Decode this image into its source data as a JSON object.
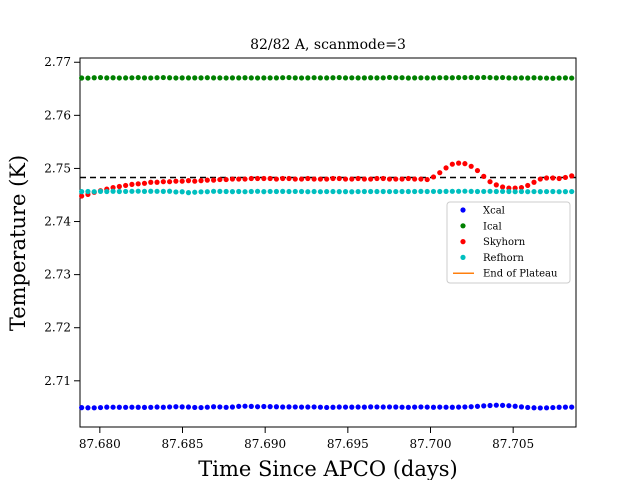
{
  "chart_data": {
    "type": "scatter",
    "title": "82/82 A, scanmode=3",
    "xlabel": "Time Since APCO (days)",
    "ylabel": "Temperature (K)",
    "xlim": [
      87.6788,
      87.7088
    ],
    "ylim": [
      2.7013,
      2.7708
    ],
    "xticks": [
      87.68,
      87.685,
      87.69,
      87.695,
      87.7,
      87.705
    ],
    "xtick_labels": [
      "87.680",
      "87.685",
      "87.690",
      "87.695",
      "87.700",
      "87.705"
    ],
    "yticks": [
      2.71,
      2.72,
      2.73,
      2.74,
      2.75,
      2.76,
      2.77
    ],
    "ytick_labels": [
      "2.71",
      "2.72",
      "2.73",
      "2.74",
      "2.75",
      "2.76",
      "2.77"
    ],
    "grid": false,
    "legend_position": "center-right",
    "hline": {
      "y": 2.7483,
      "style": "dashed",
      "color": "#000000"
    },
    "series": [
      {
        "name": "Xcal",
        "color": "#0000ff",
        "x_start": 87.6789,
        "x_step": 0.00038,
        "values": [
          2.70495,
          2.70492,
          2.70491,
          2.70496,
          2.70504,
          2.70503,
          2.70502,
          2.70501,
          2.70503,
          2.70502,
          2.70499,
          2.70501,
          2.70506,
          2.70502,
          2.70508,
          2.70512,
          2.70509,
          2.70506,
          2.70498,
          2.70496,
          2.70503,
          2.70511,
          2.70508,
          2.70501,
          2.70507,
          2.70519,
          2.70522,
          2.70518,
          2.70512,
          2.70516,
          2.70514,
          2.70511,
          2.70507,
          2.70509,
          2.70508,
          2.70505,
          2.70506,
          2.70508,
          2.70503,
          2.70498,
          2.70502,
          2.70506,
          2.70505,
          2.70504,
          2.70506,
          2.70504,
          2.70509,
          2.70508,
          2.70506,
          2.70508,
          2.70507,
          2.70503,
          2.70501,
          2.70505,
          2.70508,
          2.70505,
          2.70502,
          2.70505,
          2.70503,
          2.70502,
          2.70505,
          2.70508,
          2.70512,
          2.70519,
          2.70528,
          2.70535,
          2.70541,
          2.70538,
          2.70531,
          2.70521,
          2.70509,
          2.70498,
          2.70492,
          2.70489,
          2.70491,
          2.70496,
          2.70502,
          2.70504,
          2.70505,
          2.70509,
          2.70512
        ]
      },
      {
        "name": "Ical",
        "color": "#008000",
        "x_start": 87.6789,
        "x_step": 0.00038,
        "values": [
          2.76703,
          2.76702,
          2.76708,
          2.76712,
          2.76706,
          2.76708,
          2.76704,
          2.76705,
          2.76707,
          2.76711,
          2.76706,
          2.76704,
          2.76709,
          2.76712,
          2.76708,
          2.76704,
          2.76706,
          2.76705,
          2.76706,
          2.76706,
          2.76709,
          2.76706,
          2.76705,
          2.76704,
          2.76706,
          2.76705,
          2.76708,
          2.76705,
          2.76704,
          2.76706,
          2.76705,
          2.76705,
          2.76709,
          2.76712,
          2.76706,
          2.76704,
          2.76706,
          2.76709,
          2.76705,
          2.76705,
          2.76708,
          2.76712,
          2.76705,
          2.76707,
          2.76705,
          2.76706,
          2.76708,
          2.76706,
          2.76707,
          2.76714,
          2.76708,
          2.76709,
          2.76703,
          2.76705,
          2.76707,
          2.76705,
          2.76706,
          2.76709,
          2.76708,
          2.76708,
          2.76711,
          2.76712,
          2.76713,
          2.76709,
          2.76714,
          2.76711,
          2.76706,
          2.76712,
          2.76706,
          2.76704,
          2.76705,
          2.76703,
          2.76708,
          2.76704,
          2.76702,
          2.76699,
          2.76703,
          2.76706,
          2.76702,
          2.76705,
          2.76703
        ]
      },
      {
        "name": "Skyhorn",
        "color": "#ff0000",
        "x_start": 87.6789,
        "x_step": 0.00038,
        "values": [
          2.7448,
          2.7451,
          2.7455,
          2.7458,
          2.7461,
          2.7464,
          2.7466,
          2.7468,
          2.747,
          2.7471,
          2.7472,
          2.7474,
          2.7474,
          2.7475,
          2.7475,
          2.7476,
          2.7476,
          2.7477,
          2.7476,
          2.7477,
          2.7478,
          2.7478,
          2.7479,
          2.7479,
          2.748,
          2.748,
          2.748,
          2.7481,
          2.7481,
          2.7481,
          2.7481,
          2.748,
          2.7481,
          2.7481,
          2.748,
          2.748,
          2.7481,
          2.748,
          2.748,
          2.748,
          2.7481,
          2.7481,
          2.748,
          2.748,
          2.7481,
          2.748,
          2.748,
          2.7481,
          2.7481,
          2.748,
          2.748,
          2.748,
          2.7481,
          2.748,
          2.748,
          2.7479,
          2.7484,
          2.7492,
          2.7501,
          2.7508,
          2.751,
          2.7509,
          2.7504,
          2.7496,
          2.7485,
          2.7475,
          2.7469,
          2.7465,
          2.7463,
          2.7463,
          2.7464,
          2.7468,
          2.7474,
          2.748,
          2.7482,
          2.7482,
          2.7481,
          2.7483,
          2.7486,
          2.7488,
          2.7491,
          2.7495
        ]
      },
      {
        "name": "Refhorn",
        "color": "#00bfbf",
        "x_start": 87.6789,
        "x_step": 0.00038,
        "values": [
          2.74563,
          2.74566,
          2.74562,
          2.74568,
          2.74565,
          2.7457,
          2.74566,
          2.74567,
          2.74569,
          2.74571,
          2.74568,
          2.7457,
          2.74569,
          2.74568,
          2.7457,
          2.74557,
          2.74561,
          2.74544,
          2.74552,
          2.7456,
          2.74562,
          2.74569,
          2.74568,
          2.74566,
          2.74563,
          2.74566,
          2.74562,
          2.74566,
          2.74569,
          2.74563,
          2.74567,
          2.74566,
          2.74568,
          2.74565,
          2.74567,
          2.74566,
          2.74562,
          2.74565,
          2.74562,
          2.74564,
          2.74565,
          2.74563,
          2.74563,
          2.74561,
          2.74564,
          2.74566,
          2.74566,
          2.74565,
          2.74566,
          2.74564,
          2.74564,
          2.74566,
          2.74565,
          2.74566,
          2.74568,
          2.74566,
          2.74567,
          2.74566,
          2.74568,
          2.74569,
          2.74569,
          2.74571,
          2.74568,
          2.74566,
          2.74567,
          2.74569,
          2.74566,
          2.74567,
          2.74565,
          2.74562,
          2.74564,
          2.74562,
          2.74564,
          2.74563,
          2.74564,
          2.74566,
          2.74562,
          2.74563,
          2.74564,
          2.74566,
          2.74563
        ]
      },
      {
        "name": "End of Plateau",
        "color": "#ff7f0e",
        "kind": "line",
        "values": []
      }
    ]
  }
}
